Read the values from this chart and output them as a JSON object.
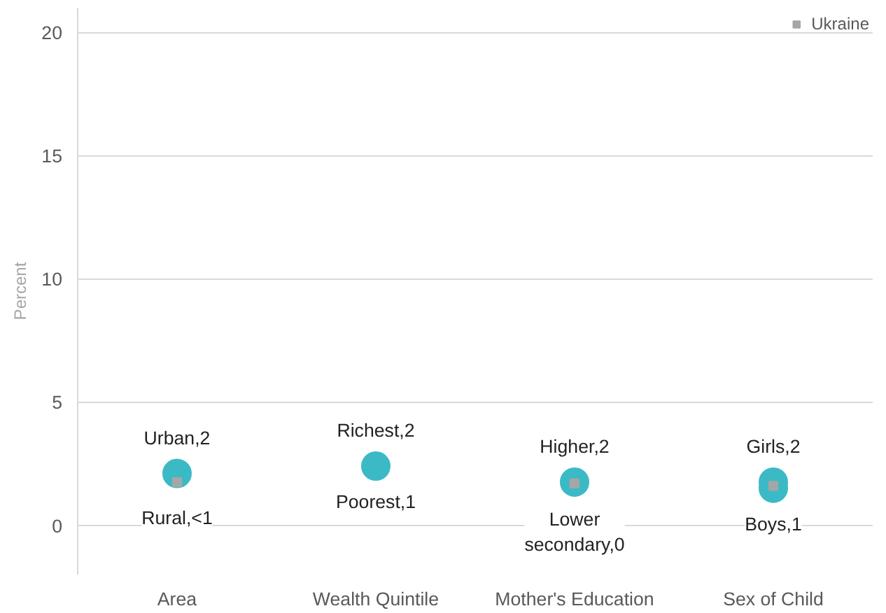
{
  "chart_data": {
    "type": "scatter",
    "ylabel": "Percent",
    "categories": [
      "Area",
      "Wealth Quintile",
      "Mother's Education",
      "Sex of Child"
    ],
    "series": [
      {
        "color": "#3bbac6",
        "values": [
          null,
          null,
          null,
          1.5
        ],
        "marker": "circle"
      },
      {
        "color": "#3bbac6",
        "values": [
          2.1,
          2.4,
          1.75,
          1.75
        ],
        "marker": "circle"
      },
      {
        "name": "Ukraine",
        "color": "#a6a6a6",
        "values": [
          1.75,
          null,
          1.7,
          1.6
        ],
        "marker": "square"
      }
    ],
    "annotations": [
      "Urban,2",
      "Rural,<1",
      "Richest,2",
      "Poorest,1",
      "Higher,2",
      "Lower\nsecondary,0",
      "Girls,2",
      "Boys,1"
    ],
    "ylim": [
      -2,
      21
    ],
    "yticks": [
      0,
      5,
      10,
      15,
      20
    ],
    "grid": "y",
    "legend": "top right"
  }
}
